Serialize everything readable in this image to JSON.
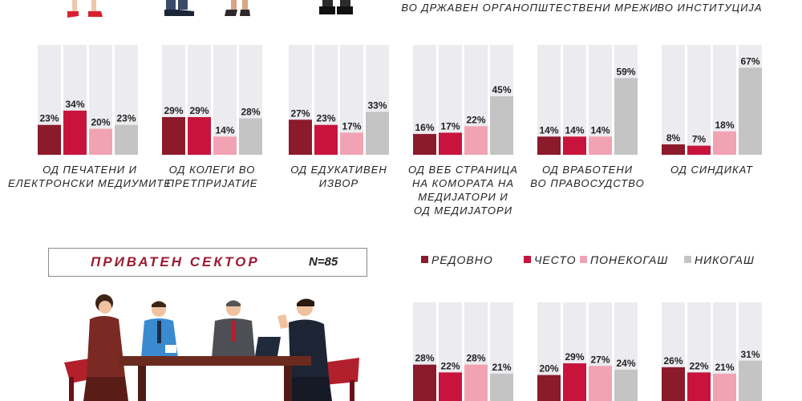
{
  "colors": {
    "regular": "#8b1a2b",
    "often": "#c8143c",
    "sometimes": "#f2a3b3",
    "never": "#c4c4c4",
    "bg_bar": "#ecebef"
  },
  "legend": [
    {
      "label": "РЕДОВНО",
      "color": "#8b1a2b"
    },
    {
      "label": "ЧЕСТО",
      "color": "#c8143c"
    },
    {
      "label": "ПОНЕКОГАШ",
      "color": "#f2a3b3"
    },
    {
      "label": "НИКОГАШ",
      "color": "#c4c4c4"
    }
  ],
  "top_labels": [
    "ВО ДРЖАВЕН ОРГАН",
    "ОПШТЕСТВЕНИ МРЕЖИ",
    "ВО ИНСТИТУЦИЈА"
  ],
  "sector": {
    "title": "ПРИВАТЕН СЕКТОР",
    "n": "N=85"
  },
  "chart_data": [
    {
      "type": "bar",
      "series": [
        {
          "name": "РЕДОВНО",
          "color": "#8b1a2b"
        },
        {
          "name": "ЧЕСТО",
          "color": "#c8143c"
        },
        {
          "name": "ПОНЕКОГАШ",
          "color": "#f2a3b3"
        },
        {
          "name": "НИКОГАШ",
          "color": "#c4c4c4"
        }
      ],
      "ylim": [
        0,
        100
      ],
      "groups": [
        {
          "label": [
            "ОД ПЕЧАТЕНИ И",
            "ЕЛЕКТРОНСКИ МЕДИУМИТЕ"
          ],
          "values": [
            23,
            34,
            20,
            23
          ]
        },
        {
          "label": [
            "ОД КОЛЕГИ ВО",
            "ПРЕТПРИЈАТИЕ"
          ],
          "values": [
            29,
            29,
            14,
            28
          ]
        },
        {
          "label": [
            "ОД ЕДУКАТИВЕН",
            "ИЗВОР"
          ],
          "values": [
            27,
            23,
            17,
            33
          ]
        },
        {
          "label": [
            "ОД ВЕБ СТРАНИЦА",
            "НА КОМОРАТА НА",
            "МЕДИЈАТОРИ И",
            "ОД МЕДИЈАТОРИ"
          ],
          "values": [
            16,
            17,
            22,
            45
          ]
        },
        {
          "label": [
            "ОД ВРАБОТЕНИ",
            "ВО ПРАВОСУДСТВО"
          ],
          "values": [
            14,
            14,
            14,
            59
          ]
        },
        {
          "label": [
            "ОД СИНДИКАТ"
          ],
          "values": [
            8,
            7,
            18,
            67
          ]
        }
      ]
    },
    {
      "type": "bar",
      "series": [
        {
          "name": "РЕДОВНО",
          "color": "#8b1a2b"
        },
        {
          "name": "ЧЕСТО",
          "color": "#c8143c"
        },
        {
          "name": "ПОНЕКОГАШ",
          "color": "#f2a3b3"
        },
        {
          "name": "НИКОГАШ",
          "color": "#c4c4c4"
        }
      ],
      "ylim": [
        0,
        100
      ],
      "groups": [
        {
          "values": [
            28,
            22,
            28,
            21
          ]
        },
        {
          "values": [
            20,
            29,
            27,
            24
          ]
        },
        {
          "values": [
            26,
            22,
            21,
            31
          ]
        }
      ]
    }
  ]
}
